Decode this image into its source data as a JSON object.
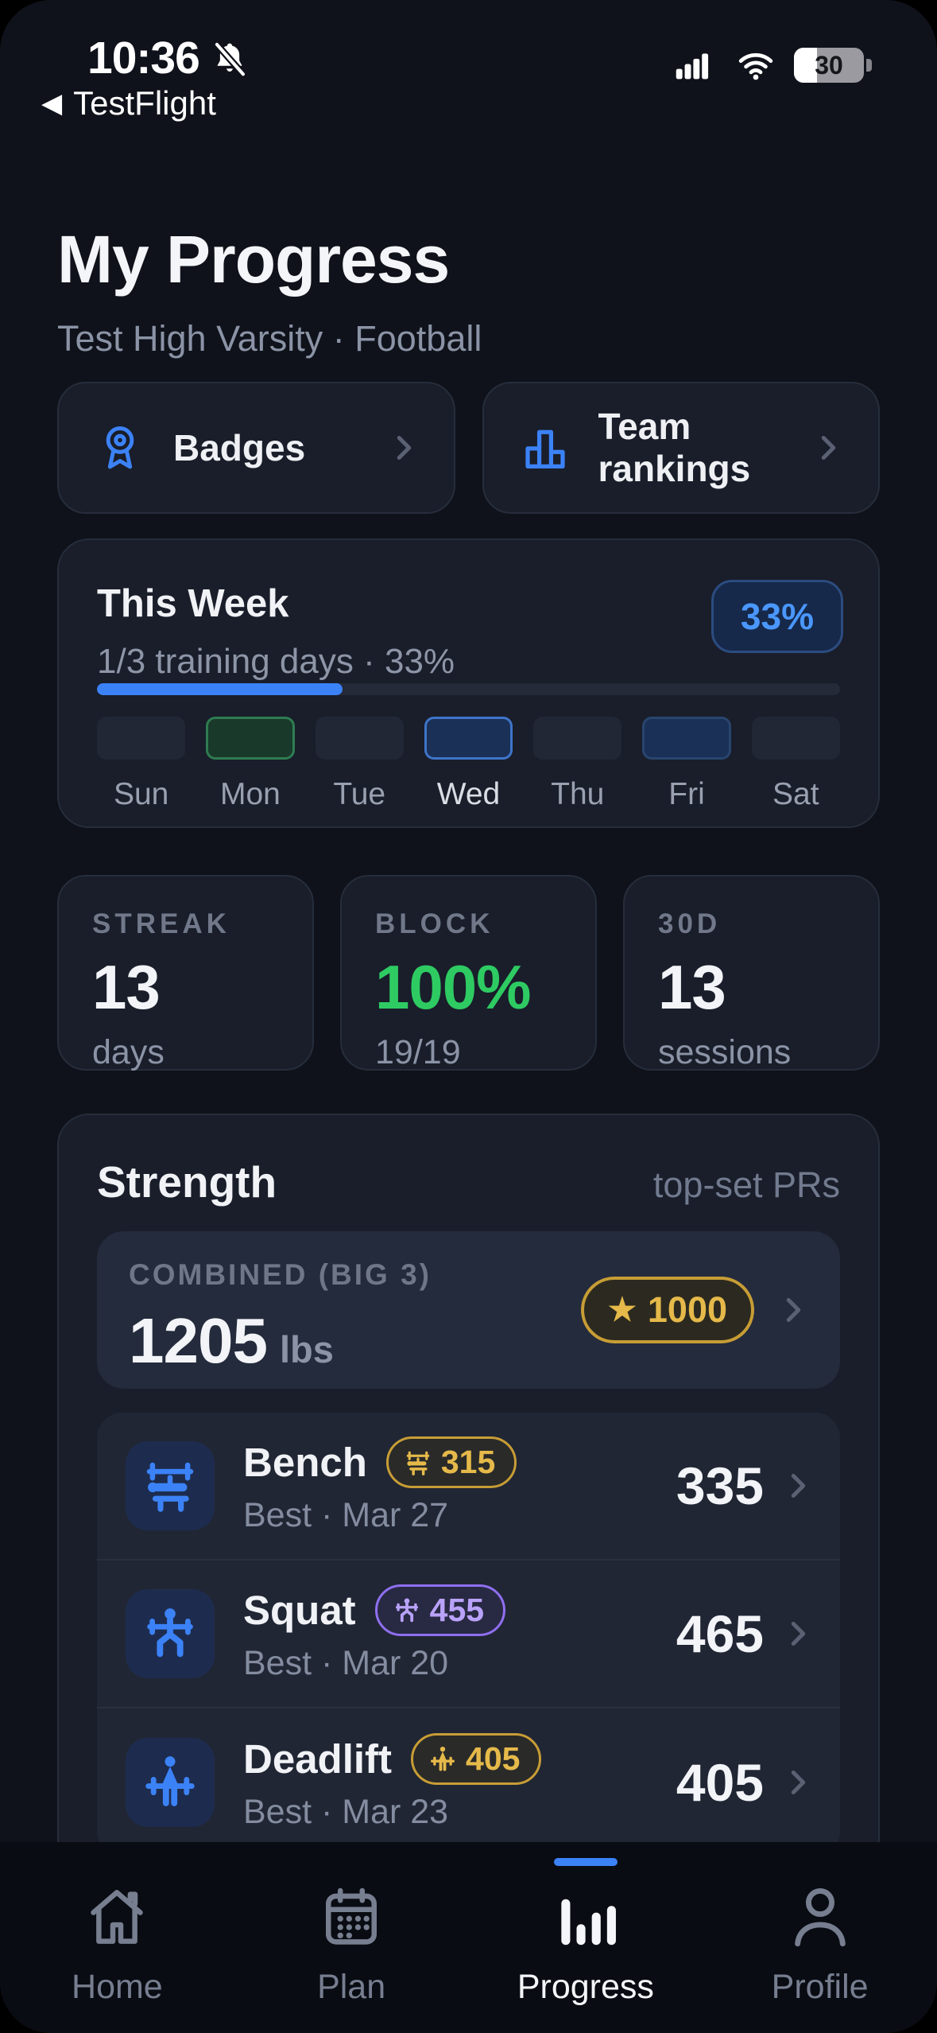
{
  "status_bar": {
    "time": "10:36",
    "back_app": "TestFlight",
    "back_glyph": "◀",
    "battery_percent": "30"
  },
  "header": {
    "title": "My Progress",
    "subtitle": "Test High Varsity · Football"
  },
  "quick_links": [
    {
      "label": "Badges",
      "icon": "ribbon-badge-icon"
    },
    {
      "label": "Team rankings",
      "icon": "bar-chart-icon"
    }
  ],
  "week": {
    "title": "This Week",
    "subtitle": "1/3 training days · 33%",
    "percent_badge": "33%",
    "progress_percent": 33,
    "days": [
      {
        "label": "Sun",
        "state": "none"
      },
      {
        "label": "Mon",
        "state": "completed"
      },
      {
        "label": "Tue",
        "state": "none"
      },
      {
        "label": "Wed",
        "state": "today"
      },
      {
        "label": "Thu",
        "state": "none"
      },
      {
        "label": "Fri",
        "state": "scheduled"
      },
      {
        "label": "Sat",
        "state": "none"
      }
    ]
  },
  "stats": [
    {
      "label": "STREAK",
      "value": "13",
      "sub": "days"
    },
    {
      "label": "BLOCK",
      "value": "100%",
      "sub": "19/19"
    },
    {
      "label": "30D",
      "value": "13",
      "sub": "sessions"
    }
  ],
  "strength": {
    "title": "Strength",
    "note": "top-set PRs",
    "combined": {
      "label": "COMBINED (BIG 3)",
      "value": "1205",
      "unit": "lbs",
      "milestone_star": "★",
      "milestone": "1000"
    },
    "exercises": [
      {
        "name": "Bench",
        "pr_badge": "315",
        "badge_style": "gold",
        "best": "Best · Mar 27",
        "value": "335",
        "icon": "bench-icon"
      },
      {
        "name": "Squat",
        "pr_badge": "455",
        "badge_style": "purple",
        "best": "Best · Mar 20",
        "value": "465",
        "icon": "squat-icon"
      },
      {
        "name": "Deadlift",
        "pr_badge": "405",
        "badge_style": "gold",
        "best": "Best · Mar 23",
        "value": "405",
        "icon": "deadlift-icon"
      }
    ]
  },
  "tab_bar": [
    {
      "label": "Home",
      "active": false
    },
    {
      "label": "Plan",
      "active": false
    },
    {
      "label": "Progress",
      "active": true
    },
    {
      "label": "Profile",
      "active": false
    }
  ],
  "colors": {
    "accent_blue": "#3c82f7",
    "success_green": "#2ecb63",
    "gold": "#e5b94a",
    "purple": "#b9a2f9",
    "card_bg": "#191e2a",
    "page_bg": "#0f121a"
  }
}
